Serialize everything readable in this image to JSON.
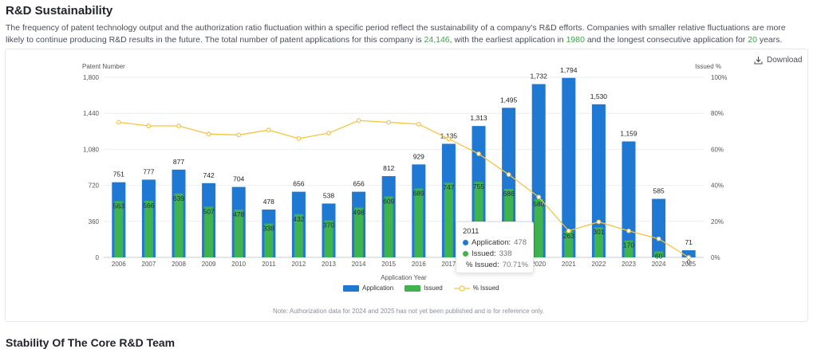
{
  "section": {
    "title": "R&D Sustainability",
    "desc_part1": "The frequency of patent technology output and the authorization ratio fluctuation within a specific period reflect the sustainability of a company's R&D efforts. Companies with smaller relative fluctuations are more likely to continue producing R&D results in the future. The total number of patent applications for this company is ",
    "total_applications": "24,146",
    "desc_part2": ", with the earliest application in ",
    "earliest_year": "1980",
    "desc_part3": " and the longest consecutive application for ",
    "consecutive_years": "20",
    "desc_part4": " years."
  },
  "download_label": "Download",
  "legend": {
    "application": "Application",
    "issued": "Issued",
    "pct_issued": "% Issued"
  },
  "note": "Note: Authorization data for 2024 and 2025 has not yet been published and is for reference only.",
  "tooltip": {
    "year": "2011",
    "application_label": "Application:",
    "application_value": "478",
    "issued_label": "Issued:",
    "issued_value": "338",
    "pct_label": "% Issued:",
    "pct_value": "70.71%"
  },
  "next_section_title": "Stability Of The Core R&D Team",
  "colors": {
    "application": "#1f78d1",
    "issued": "#3fb34f",
    "pct": "#f6c343",
    "highlight": "#3fa34d"
  },
  "chart_data": {
    "type": "bar",
    "ylabel_left": "Patent Number",
    "ylabel_right": "Issued %",
    "xlabel": "Application Year",
    "ylim_left": [
      0,
      1800
    ],
    "yticks_left": [
      "0",
      "360",
      "720",
      "1,080",
      "1,440",
      "1,800"
    ],
    "ylim_right": [
      0,
      100
    ],
    "yticks_right": [
      "0%",
      "20%",
      "40%",
      "60%",
      "80%",
      "100%"
    ],
    "grid": true,
    "categories": [
      "2006",
      "2007",
      "2008",
      "2009",
      "2010",
      "2011",
      "2012",
      "2013",
      "2014",
      "2015",
      "2016",
      "2017",
      "2018",
      "2019",
      "2020",
      "2021",
      "2022",
      "2023",
      "2024",
      "2025"
    ],
    "series": [
      {
        "name": "Application",
        "type": "bar",
        "values": [
          751,
          777,
          877,
          742,
          704,
          478,
          656,
          538,
          656,
          812,
          929,
          1135,
          1313,
          1495,
          1732,
          1794,
          1530,
          1159,
          585,
          71
        ]
      },
      {
        "name": "Issued",
        "type": "bar",
        "values": [
          563,
          566,
          639,
          507,
          478,
          338,
          432,
          370,
          498,
          609,
          689,
          747,
          755,
          686,
          580,
          263,
          301,
          170,
          60,
          0
        ]
      },
      {
        "name": "% Issued",
        "type": "line",
        "axis": "right",
        "values": [
          75,
          73,
          73,
          68.5,
          68,
          70.71,
          66,
          69,
          76,
          75,
          74,
          65.8,
          57.5,
          46,
          33.5,
          14.7,
          19.7,
          14.7,
          10.3,
          0
        ]
      }
    ]
  }
}
